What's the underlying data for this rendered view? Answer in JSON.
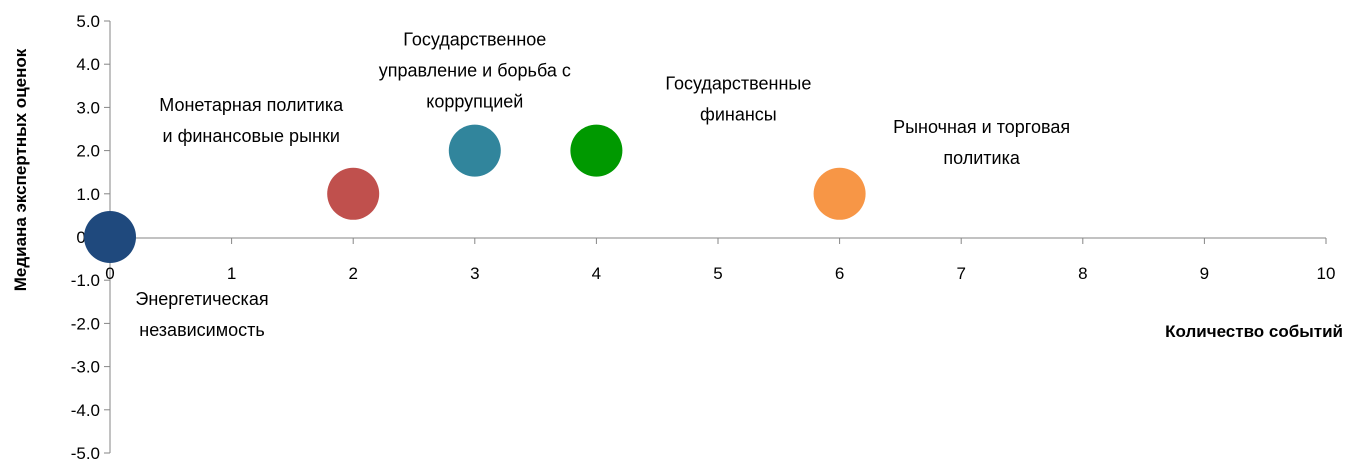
{
  "chart_data": {
    "type": "scatter",
    "xlabel": "Количество событий",
    "ylabel": "Медиана экспертных оценок",
    "xlim": [
      0,
      10
    ],
    "ylim": [
      -5,
      5
    ],
    "xticks": [
      0,
      1,
      2,
      3,
      4,
      5,
      6,
      7,
      8,
      9,
      10
    ],
    "yticks": [
      "5.0",
      "4.0",
      "3.0",
      "2.0",
      "1.0",
      "0.0",
      "-1.0",
      "-2.0",
      "-3.0",
      "-4.0",
      "-5.0"
    ],
    "grid": false,
    "points": [
      {
        "name": "Энергетическая независимость",
        "label_lines": [
          "Энергетическая",
          "независимость"
        ],
        "label_position": "below-right",
        "x": 0,
        "y": 0,
        "color": "#1F497D"
      },
      {
        "name": "Монетарная политика и финансовые рынки",
        "label_lines": [
          "Монетарная политика",
          "и финансовые рынки"
        ],
        "label_position": "above-left",
        "x": 2,
        "y": 1,
        "color": "#C0504D"
      },
      {
        "name": "Государственное управление и борьба с коррупцией",
        "label_lines": [
          "Государственное",
          "управление и борьба с",
          "коррупцией"
        ],
        "label_position": "above",
        "x": 3,
        "y": 2,
        "color": "#31859C"
      },
      {
        "name": "Государственные финансы",
        "label_lines": [
          "Государственные",
          "финансы"
        ],
        "label_position": "above-right",
        "x": 4,
        "y": 2,
        "color": "#009900"
      },
      {
        "name": "Рыночная и торговая политика",
        "label_lines": [
          "Рыночная и торговая",
          "политика"
        ],
        "label_position": "above-right",
        "x": 6,
        "y": 1,
        "color": "#F79646"
      }
    ]
  }
}
